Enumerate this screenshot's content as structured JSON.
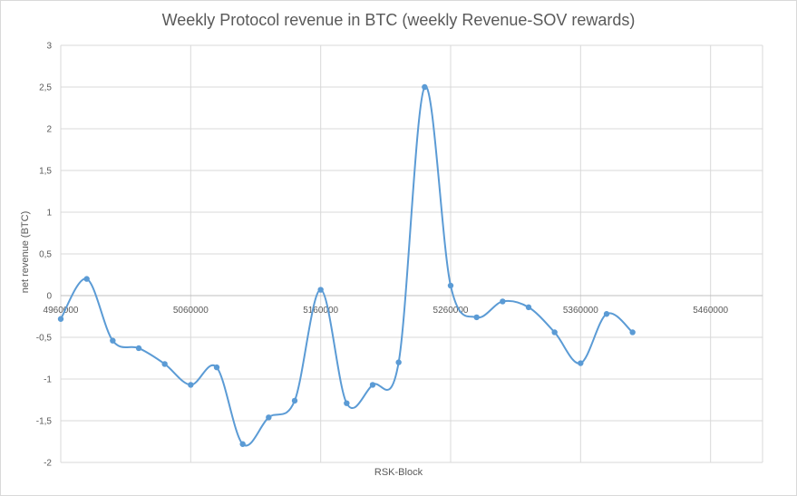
{
  "chart_data": {
    "type": "line",
    "title": "Weekly Protocol revenue in BTC (weekly Revenue-SOV rewards)",
    "xlabel": "RSK-Block",
    "ylabel": "net revenue (BTC)",
    "xlim": [
      4960000,
      5500000
    ],
    "ylim": [
      -2,
      3
    ],
    "x_ticks": [
      {
        "value": 4960000,
        "label": "4960000"
      },
      {
        "value": 5060000,
        "label": "5060000"
      },
      {
        "value": 5160000,
        "label": "5160000"
      },
      {
        "value": 5260000,
        "label": "5260000"
      },
      {
        "value": 5360000,
        "label": "5360000"
      },
      {
        "value": 5460000,
        "label": "5460000"
      }
    ],
    "y_ticks": [
      {
        "value": 3,
        "label": "3"
      },
      {
        "value": 2.5,
        "label": "2,5"
      },
      {
        "value": 2,
        "label": "2"
      },
      {
        "value": 1.5,
        "label": "1,5"
      },
      {
        "value": 1,
        "label": "1"
      },
      {
        "value": 0.5,
        "label": "0,5"
      },
      {
        "value": 0,
        "label": "0"
      },
      {
        "value": -0.5,
        "label": "-0,5"
      },
      {
        "value": -1,
        "label": "-1"
      },
      {
        "value": -1.5,
        "label": "-1,5"
      },
      {
        "value": -2,
        "label": "-2"
      }
    ],
    "grid": true,
    "smooth": true,
    "color": "#5b9bd5",
    "series": [
      {
        "name": "net revenue (BTC)",
        "x": [
          4960000,
          4980000,
          5000000,
          5020000,
          5040000,
          5060000,
          5080000,
          5100000,
          5120000,
          5140000,
          5160000,
          5180000,
          5200000,
          5220000,
          5240000,
          5260000,
          5280000,
          5300000,
          5320000,
          5340000,
          5360000,
          5380000,
          5400000
        ],
        "y": [
          -0.28,
          0.2,
          -0.54,
          -0.63,
          -0.82,
          -1.07,
          -0.86,
          -1.78,
          -1.46,
          -1.26,
          0.07,
          -1.29,
          -1.07,
          -0.8,
          2.5,
          0.12,
          -0.26,
          -0.07,
          -0.14,
          -0.44,
          -0.81,
          -0.22,
          -0.44
        ]
      }
    ]
  }
}
